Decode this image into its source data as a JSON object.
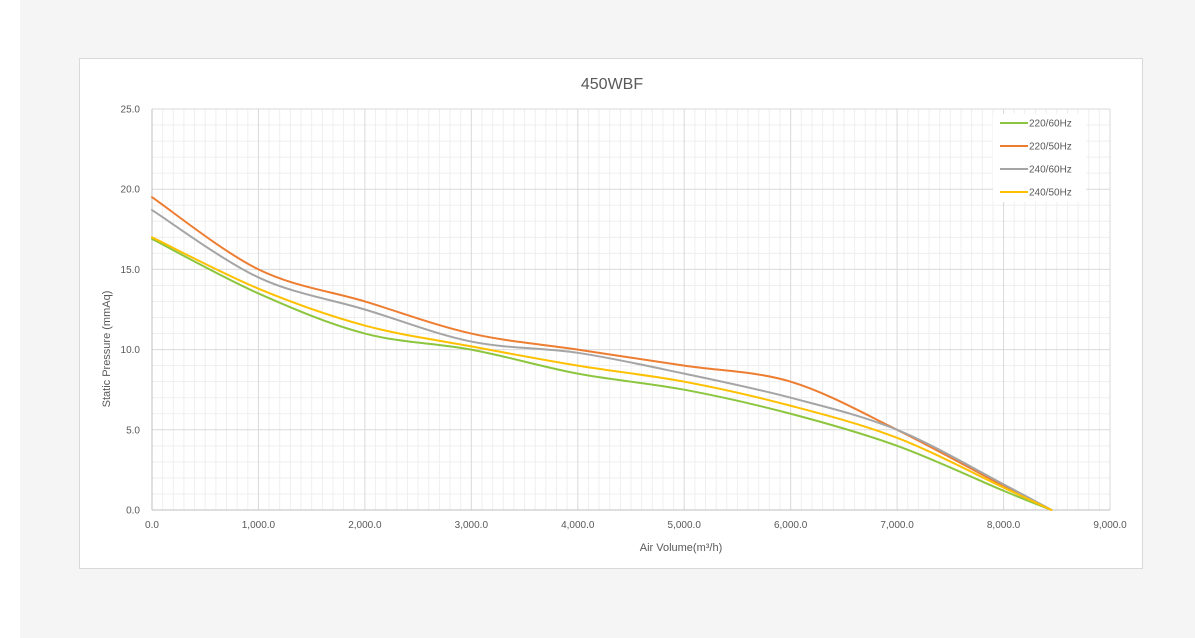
{
  "chart_data": {
    "type": "line",
    "title": "450WBF",
    "xlabel": "Air Volume(m³/h)",
    "ylabel": "Static Pressure (mmAq)",
    "xlim": [
      0,
      9000
    ],
    "ylim": [
      0,
      25
    ],
    "x_ticks": [
      "0.0",
      "1,000.0",
      "2,000.0",
      "3,000.0",
      "4,000.0",
      "5,000.0",
      "6,000.0",
      "7,000.0",
      "8,000.0",
      "9,000.0"
    ],
    "y_ticks": [
      "0.0",
      "5.0",
      "10.0",
      "15.0",
      "20.0",
      "25.0"
    ],
    "grid": true,
    "legend_position": "top-right",
    "series": [
      {
        "name": "220/60Hz",
        "color": "#8cc63f",
        "x": [
          0,
          1000,
          2000,
          3000,
          4000,
          5000,
          6000,
          7000,
          8000,
          8450
        ],
        "values": [
          16.9,
          13.5,
          11.0,
          10.0,
          8.5,
          7.5,
          6.0,
          4.0,
          1.2,
          0.0
        ]
      },
      {
        "name": "220/50Hz",
        "color": "#ed7d31",
        "x": [
          0,
          1000,
          2000,
          3000,
          4000,
          5000,
          6000,
          7000,
          8000,
          8450
        ],
        "values": [
          19.5,
          15.0,
          13.0,
          11.0,
          10.0,
          9.0,
          8.0,
          5.0,
          1.5,
          0.0
        ]
      },
      {
        "name": "240/60Hz",
        "color": "#a5a5a5",
        "x": [
          0,
          1000,
          2000,
          3000,
          4000,
          5000,
          6000,
          7000,
          8000,
          8450
        ],
        "values": [
          18.7,
          14.5,
          12.5,
          10.5,
          9.8,
          8.5,
          7.0,
          5.0,
          1.6,
          0.0
        ]
      },
      {
        "name": "240/50Hz",
        "color": "#ffc000",
        "x": [
          0,
          1000,
          2000,
          3000,
          4000,
          5000,
          6000,
          7000,
          8000,
          8450
        ],
        "values": [
          17.0,
          13.8,
          11.5,
          10.2,
          9.0,
          8.0,
          6.5,
          4.5,
          1.4,
          0.0
        ]
      }
    ]
  }
}
